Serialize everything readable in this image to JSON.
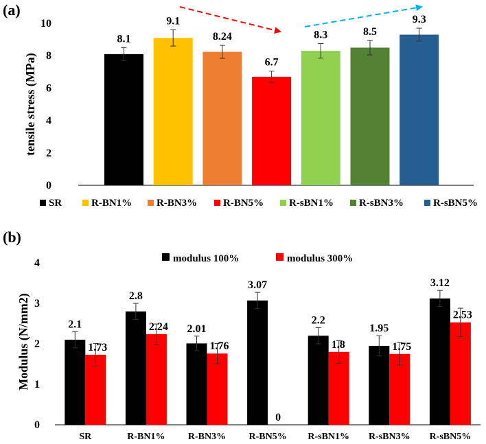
{
  "chart_data": [
    {
      "panel_label": "(a)",
      "type": "bar",
      "ylabel": "tensile stress (MPa)",
      "ylim": [
        0,
        10
      ],
      "yticks": [
        0,
        2,
        4,
        6,
        8,
        10
      ],
      "legend_position": "bottom",
      "series": [
        {
          "name": "SR",
          "value": 8.1,
          "error": 0.4,
          "label": "8.1",
          "color": "#000000"
        },
        {
          "name": "R-BN1%",
          "value": 9.1,
          "error": 0.5,
          "label": "9.1",
          "color": "#FFC000"
        },
        {
          "name": "R-BN3%",
          "value": 8.24,
          "error": 0.4,
          "label": "8.24",
          "color": "#ED7D31"
        },
        {
          "name": "R-BN5%",
          "value": 6.7,
          "error": 0.35,
          "label": "6.7",
          "color": "#FF0000"
        },
        {
          "name": "R-sBN1%",
          "value": 8.3,
          "error": 0.45,
          "label": "8.3",
          "color": "#92D050"
        },
        {
          "name": "R-sBN3%",
          "value": 8.5,
          "error": 0.45,
          "label": "8.5",
          "color": "#548235"
        },
        {
          "name": "R-sBN5%",
          "value": 9.3,
          "error": 0.4,
          "label": "9.3",
          "color": "#255E91"
        }
      ],
      "annotations": [
        {
          "type": "dashed-arrow",
          "color": "#FF0000",
          "direction": "down-right"
        },
        {
          "type": "dashed-arrow",
          "color": "#00B0F0",
          "direction": "up-right"
        }
      ]
    },
    {
      "panel_label": "(b)",
      "type": "bar",
      "ylabel": "Modulus (N/mm2)",
      "ylim": [
        0,
        4
      ],
      "yticks": [
        0,
        1,
        2,
        3,
        4
      ],
      "legend_position": "top",
      "categories": [
        "SR",
        "R-BN1%",
        "R-BN3%",
        "R-BN5%",
        "R-sBN1%",
        "R-sBN3%",
        "R-sBN5%"
      ],
      "series": [
        {
          "name": "modulus 100%",
          "color": "#000000",
          "values": [
            2.1,
            2.8,
            2.01,
            3.07,
            2.2,
            1.95,
            3.12
          ],
          "labels": [
            "2.1",
            "2.8",
            "2.01",
            "3.07",
            "2.2",
            "1.95",
            "3.12"
          ],
          "errors": [
            0.2,
            0.2,
            0.18,
            0.2,
            0.2,
            0.25,
            0.2
          ]
        },
        {
          "name": "modulus 300%",
          "color": "#FF0000",
          "values": [
            1.73,
            2.24,
            1.76,
            0,
            1.8,
            1.75,
            2.53
          ],
          "labels": [
            "1.73",
            "2.24",
            "1.76",
            "0",
            "1.8",
            "1.75",
            "2.53"
          ],
          "errors": [
            0.28,
            0.25,
            0.25,
            0,
            0.28,
            0.28,
            0.35
          ]
        }
      ]
    }
  ]
}
